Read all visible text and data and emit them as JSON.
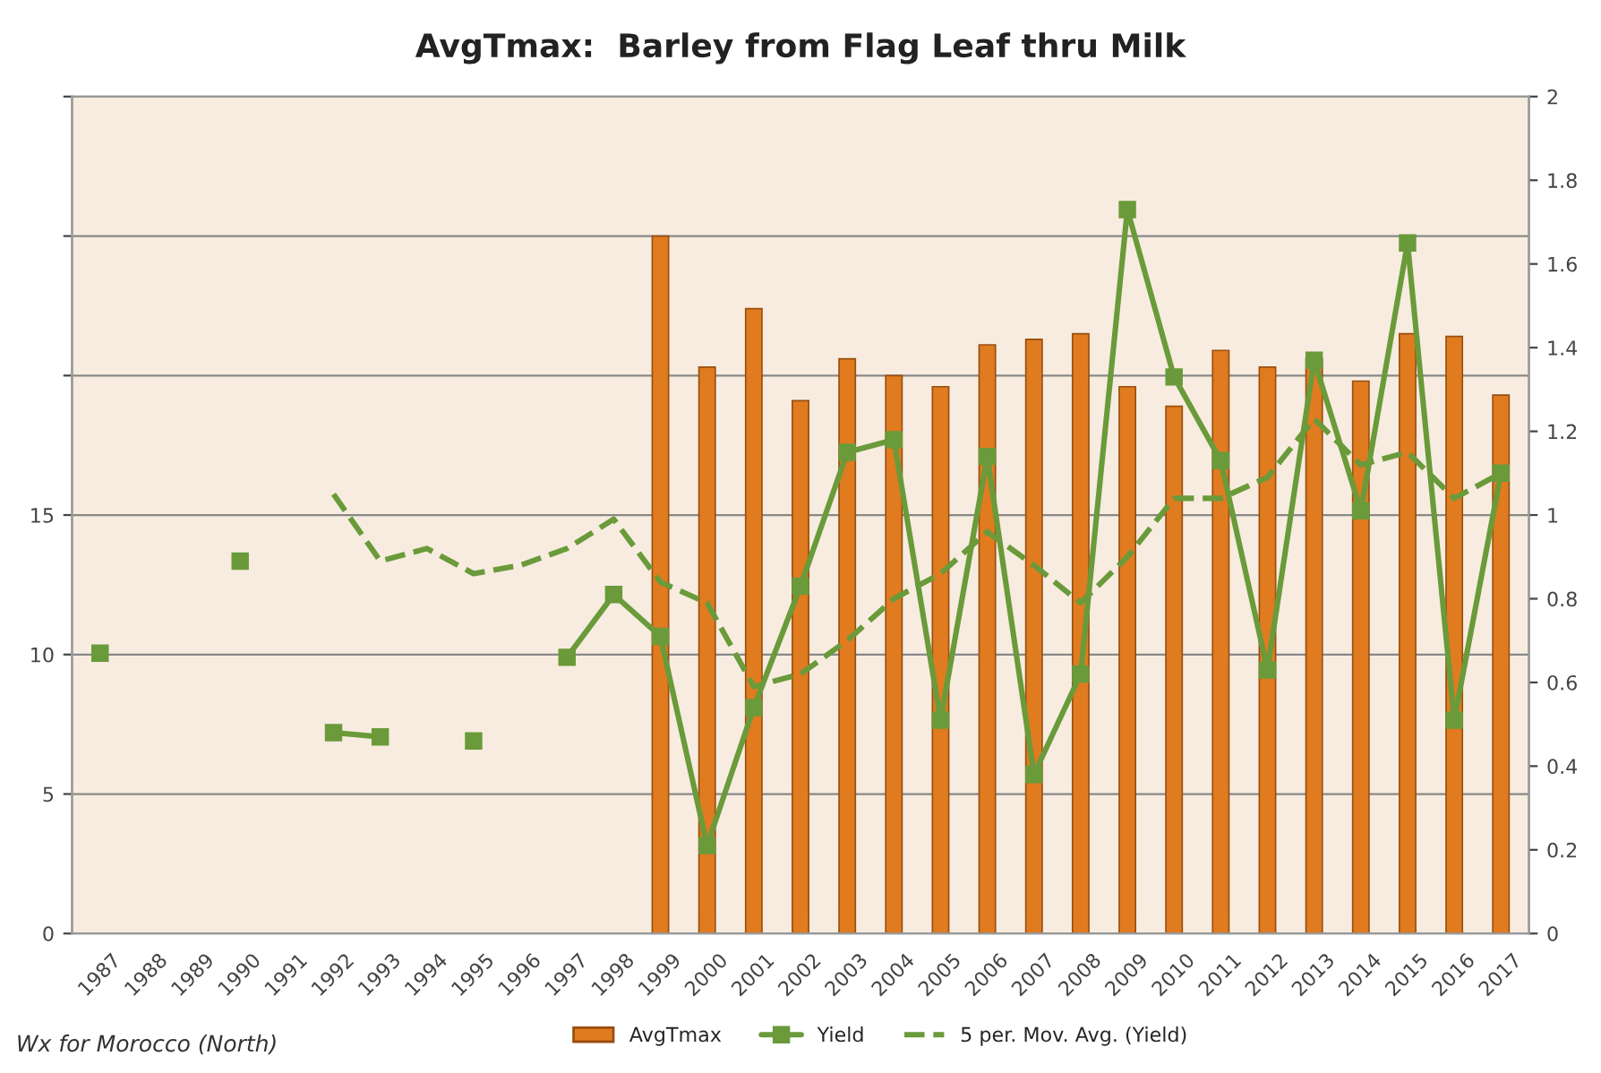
{
  "chart_data": {
    "type": "bar",
    "title": "AvgTmax:  Barley from Flag Leaf thru Milk",
    "categories": [
      "1987",
      "1988",
      "1989",
      "1990",
      "1991",
      "1992",
      "1993",
      "1994",
      "1995",
      "1996",
      "1997",
      "1998",
      "1999",
      "2000",
      "2001",
      "2002",
      "2003",
      "2004",
      "2005",
      "2006",
      "2007",
      "2008",
      "2009",
      "2010",
      "2011",
      "2012",
      "2013",
      "2014",
      "2015",
      "2016",
      "2017"
    ],
    "series": [
      {
        "name": "AvgTmax",
        "color": "#e07b20",
        "values": [
          null,
          null,
          null,
          null,
          null,
          null,
          null,
          null,
          null,
          null,
          null,
          null,
          25.0,
          20.3,
          22.4,
          19.1,
          20.6,
          20.0,
          19.6,
          21.1,
          21.3,
          21.5,
          19.6,
          18.9,
          20.9,
          20.3,
          20.6,
          19.8,
          21.5,
          21.4,
          19.3
        ]
      },
      {
        "name": "Yield",
        "type": "line",
        "axis": "y2",
        "color": "#6a9a3a",
        "marker": "square",
        "line_style": "solid",
        "values": [
          0.67,
          null,
          null,
          0.89,
          null,
          0.48,
          0.47,
          null,
          0.46,
          null,
          0.66,
          0.81,
          0.71,
          0.21,
          0.54,
          0.83,
          1.15,
          1.18,
          0.51,
          1.14,
          0.38,
          0.62,
          1.73,
          1.33,
          1.13,
          0.63,
          1.37,
          1.01,
          1.65,
          0.51,
          1.1
        ]
      },
      {
        "name": "5 per. Mov. Avg. (Yield)",
        "type": "line",
        "axis": "y2",
        "color": "#6a9a3a",
        "marker": "none",
        "line_style": "dashed",
        "values": [
          null,
          null,
          null,
          null,
          null,
          1.05,
          0.89,
          0.92,
          0.86,
          0.88,
          0.92,
          0.99,
          0.84,
          0.79,
          0.59,
          0.62,
          0.7,
          0.8,
          0.86,
          0.96,
          0.88,
          0.79,
          0.9,
          1.04,
          1.04,
          1.09,
          1.23,
          1.12,
          1.15,
          1.04,
          1.1
        ]
      }
    ],
    "ylim": [
      0,
      30
    ],
    "yticks": [
      0,
      5,
      10,
      15,
      {
        "value": 20,
        "label": null
      },
      {
        "value": 25,
        "label": null
      },
      {
        "value": 30,
        "label": null
      }
    ],
    "y2lim": [
      0,
      2
    ],
    "y2ticks": [
      0,
      0.2,
      0.4,
      0.6,
      0.8,
      1,
      1.2,
      1.4,
      1.6,
      1.8,
      2
    ],
    "grid": "y",
    "legend": "bottom",
    "annotations": [
      "Wx for Morocco (North)"
    ]
  }
}
